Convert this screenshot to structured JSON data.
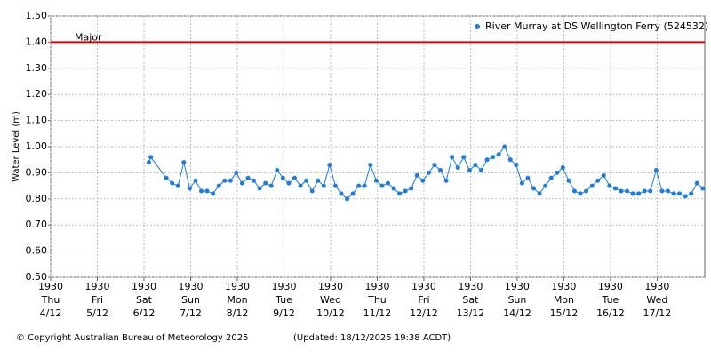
{
  "chart_data": {
    "type": "line",
    "y_label": "Water Level (m)",
    "footer_left": "© Copyright Australian Bureau of Meteorology 2025",
    "footer_right": "(Updated: 18/12/2025 19:38 ACDT)",
    "threshold": {
      "value": 1.4,
      "label": "Major",
      "color": "#e00000"
    },
    "grid": true,
    "legend": "top-right",
    "xlim": [
      "4/12 19:30",
      "18/12 20:00"
    ],
    "xticks": [
      {
        "value": "4/12 19:30",
        "label": [
          "1930",
          "Thu",
          "4/12"
        ]
      },
      {
        "value": "5/12 19:30",
        "label": [
          "1930",
          "Fri",
          "5/12"
        ]
      },
      {
        "value": "6/12 19:30",
        "label": [
          "1930",
          "Sat",
          "6/12"
        ]
      },
      {
        "value": "7/12 19:30",
        "label": [
          "1930",
          "Sun",
          "7/12"
        ]
      },
      {
        "value": "8/12 19:30",
        "label": [
          "1930",
          "Mon",
          "8/12"
        ]
      },
      {
        "value": "9/12 19:30",
        "label": [
          "1930",
          "Tue",
          "9/12"
        ]
      },
      {
        "value": "10/12 19:30",
        "label": [
          "1930",
          "Wed",
          "10/12"
        ]
      },
      {
        "value": "11/12 19:30",
        "label": [
          "1930",
          "Thu",
          "11/12"
        ]
      },
      {
        "value": "12/12 19:30",
        "label": [
          "1930",
          "Fri",
          "12/12"
        ]
      },
      {
        "value": "13/12 19:30",
        "label": [
          "1930",
          "Sat",
          "13/12"
        ]
      },
      {
        "value": "14/12 19:30",
        "label": [
          "1930",
          "Sun",
          "14/12"
        ]
      },
      {
        "value": "15/12 19:30",
        "label": [
          "1930",
          "Mon",
          "15/12"
        ]
      },
      {
        "value": "16/12 19:30",
        "label": [
          "1930",
          "Tue",
          "16/12"
        ]
      },
      {
        "value": "17/12 19:30",
        "label": [
          "1930",
          "Wed",
          "17/12"
        ]
      }
    ],
    "ylim": [
      0.5,
      1.5
    ],
    "yticks": [
      {
        "value": 0.5,
        "label": "0.50"
      },
      {
        "value": 0.6,
        "label": "0.60"
      },
      {
        "value": 0.7,
        "label": "0.70"
      },
      {
        "value": 0.8,
        "label": "0.80"
      },
      {
        "value": 0.9,
        "label": "0.90"
      },
      {
        "value": 1.0,
        "label": "1.00"
      },
      {
        "value": 1.1,
        "label": "1.10"
      },
      {
        "value": 1.2,
        "label": "1.20"
      },
      {
        "value": 1.3,
        "label": "1.30"
      },
      {
        "value": 1.4,
        "label": "1.40"
      },
      {
        "value": 1.5,
        "label": "1.50"
      }
    ],
    "series": [
      {
        "name": "River Murray at DS Wellington Ferry (524532)",
        "color": "#1e7be0",
        "x": [
          "6/12 22:00",
          "6/12 23:00",
          "7/12 07:00",
          "7/12 10:00",
          "7/12 13:00",
          "7/12 16:00",
          "7/12 19:00",
          "7/12 22:00",
          "8/12 01:00",
          "8/12 04:00",
          "8/12 07:00",
          "8/12 10:00",
          "8/12 13:00",
          "8/12 16:00",
          "8/12 19:00",
          "8/12 22:00",
          "9/12 01:00",
          "9/12 04:00",
          "9/12 07:00",
          "9/12 10:00",
          "9/12 13:00",
          "9/12 16:00",
          "9/12 19:00",
          "9/12 22:00",
          "10/12 01:00",
          "10/12 04:00",
          "10/12 07:00",
          "10/12 10:00",
          "10/12 13:00",
          "10/12 16:00",
          "10/12 19:00",
          "10/12 22:00",
          "11/12 01:00",
          "11/12 04:00",
          "11/12 07:00",
          "11/12 10:00",
          "11/12 13:00",
          "11/12 16:00",
          "11/12 19:00",
          "11/12 22:00",
          "12/12 01:00",
          "12/12 04:00",
          "12/12 07:00",
          "12/12 10:00",
          "12/12 13:00",
          "12/12 16:00",
          "12/12 19:00",
          "12/12 22:00",
          "13/12 01:00",
          "13/12 04:00",
          "13/12 07:00",
          "13/12 10:00",
          "13/12 13:00",
          "13/12 16:00",
          "13/12 19:00",
          "13/12 22:00",
          "14/12 01:00",
          "14/12 04:00",
          "14/12 07:00",
          "14/12 10:00",
          "14/12 13:00",
          "14/12 16:00",
          "14/12 19:00",
          "14/12 22:00",
          "15/12 01:00",
          "15/12 04:00",
          "15/12 07:00",
          "15/12 10:00",
          "15/12 13:00",
          "15/12 16:00",
          "15/12 19:00",
          "15/12 22:00",
          "16/12 01:00",
          "16/12 04:00",
          "16/12 07:00",
          "16/12 10:00",
          "16/12 13:00",
          "16/12 16:00",
          "16/12 19:00",
          "16/12 22:00",
          "17/12 01:00",
          "17/12 04:00",
          "17/12 07:00",
          "17/12 10:00",
          "17/12 13:00",
          "17/12 16:00",
          "17/12 19:00",
          "17/12 22:00",
          "18/12 01:00",
          "18/12 04:00",
          "18/12 07:00",
          "18/12 10:00",
          "18/12 13:00",
          "18/12 16:00",
          "18/12 19:00"
        ],
        "values": [
          0.94,
          0.96,
          0.88,
          0.86,
          0.85,
          0.94,
          0.84,
          0.87,
          0.83,
          0.83,
          0.82,
          0.85,
          0.87,
          0.87,
          0.9,
          0.86,
          0.88,
          0.87,
          0.84,
          0.86,
          0.85,
          0.91,
          0.88,
          0.86,
          0.88,
          0.85,
          0.87,
          0.83,
          0.87,
          0.85,
          0.93,
          0.85,
          0.82,
          0.8,
          0.82,
          0.85,
          0.85,
          0.93,
          0.87,
          0.85,
          0.86,
          0.84,
          0.82,
          0.83,
          0.84,
          0.89,
          0.87,
          0.9,
          0.93,
          0.91,
          0.87,
          0.96,
          0.92,
          0.96,
          0.91,
          0.93,
          0.91,
          0.95,
          0.96,
          0.97,
          1.0,
          0.95,
          0.93,
          0.86,
          0.88,
          0.84,
          0.82,
          0.85,
          0.88,
          0.9,
          0.92,
          0.87,
          0.83,
          0.82,
          0.83,
          0.85,
          0.87,
          0.89,
          0.85,
          0.84,
          0.83,
          0.83,
          0.82,
          0.82,
          0.83,
          0.83,
          0.91,
          0.83,
          0.83,
          0.82,
          0.82,
          0.81,
          0.82,
          0.86,
          0.84
        ]
      }
    ]
  }
}
